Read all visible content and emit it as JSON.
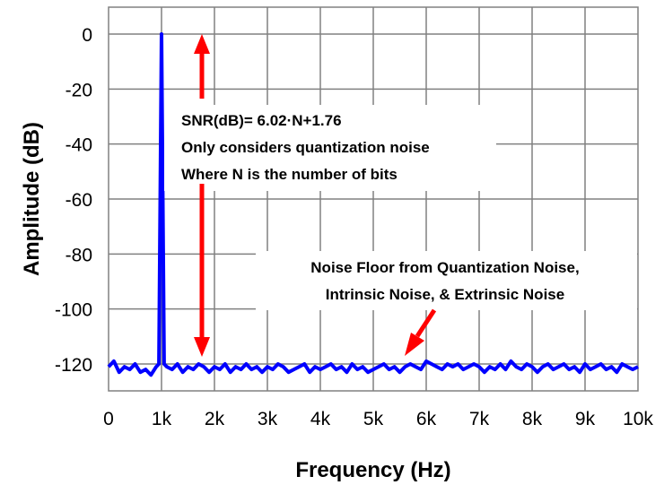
{
  "chart_data": {
    "type": "line",
    "title": "",
    "xlabel": "Frequency (Hz)",
    "ylabel": "Amplitude (dB)",
    "xlim": [
      0,
      10000
    ],
    "ylim": [
      -130,
      10
    ],
    "x_ticks": [
      0,
      1000,
      2000,
      3000,
      4000,
      5000,
      6000,
      7000,
      8000,
      9000,
      10000
    ],
    "x_tick_labels": [
      "0",
      "1k",
      "2k",
      "3k",
      "4k",
      "5k",
      "6k",
      "7k",
      "8k",
      "9k",
      "10k"
    ],
    "y_ticks": [
      0,
      -20,
      -40,
      -60,
      -80,
      -100,
      -120
    ],
    "y_tick_labels": [
      "0",
      "-20",
      "-40",
      "-60",
      "-80",
      "-100",
      "-120"
    ],
    "grid": true,
    "series_color": "#0000ff",
    "annotation_color": "#ff0000",
    "series": [
      {
        "x": [
          0,
          100,
          200,
          300,
          400,
          500,
          600,
          700,
          800,
          900,
          950,
          1000,
          1050,
          1100,
          1200,
          1300,
          1400,
          1500,
          1600,
          1700,
          1800,
          1900,
          2000,
          2100,
          2200,
          2300,
          2400,
          2500,
          2600,
          2700,
          2800,
          2900,
          3000,
          3100,
          3200,
          3300,
          3400,
          3500,
          3600,
          3700,
          3800,
          3900,
          4000,
          4100,
          4200,
          4300,
          4400,
          4500,
          4600,
          4700,
          4800,
          4900,
          5000,
          5100,
          5200,
          5300,
          5400,
          5500,
          5600,
          5700,
          5800,
          5900,
          6000,
          6100,
          6200,
          6300,
          6400,
          6500,
          6600,
          6700,
          6800,
          6900,
          7000,
          7100,
          7200,
          7300,
          7400,
          7500,
          7600,
          7700,
          7800,
          7900,
          8000,
          8100,
          8200,
          8300,
          8400,
          8500,
          8600,
          8700,
          8800,
          8900,
          9000,
          9100,
          9200,
          9300,
          9400,
          9500,
          9600,
          9700,
          9800,
          9900,
          10000
        ],
        "y": [
          -121,
          -119,
          -123,
          -121,
          -122,
          -120,
          -123,
          -122,
          -124,
          -121,
          -120,
          0,
          -120,
          -121,
          -122,
          -120,
          -123,
          -121,
          -122,
          -120,
          -121,
          -123,
          -121,
          -122,
          -120,
          -123,
          -121,
          -122,
          -120,
          -122,
          -121,
          -123,
          -121,
          -122,
          -120,
          -121,
          -123,
          -122,
          -121,
          -120,
          -123,
          -121,
          -122,
          -121,
          -120,
          -122,
          -121,
          -123,
          -120,
          -122,
          -121,
          -123,
          -122,
          -121,
          -120,
          -122,
          -121,
          -123,
          -121,
          -120,
          -121,
          -122,
          -119,
          -120,
          -121,
          -122,
          -120,
          -121,
          -120,
          -122,
          -121,
          -120,
          -121,
          -123,
          -121,
          -122,
          -120,
          -122,
          -119,
          -121,
          -122,
          -120,
          -121,
          -123,
          -121,
          -120,
          -122,
          -121,
          -120,
          -122,
          -121,
          -123,
          -120,
          -122,
          -121,
          -120,
          -122,
          -121,
          -123,
          -120,
          -121,
          -122,
          -121
        ]
      }
    ],
    "annotations": {
      "snr_line1": "SNR(dB)= 6.02·N+1.76",
      "snr_line2": "Only considers quantization noise",
      "snr_line3": "Where N is the number of bits",
      "noise_line1": "Noise Floor from Quantization Noise,",
      "noise_line2": "Intrinsic Noise, & Extrinsic Noise"
    }
  }
}
